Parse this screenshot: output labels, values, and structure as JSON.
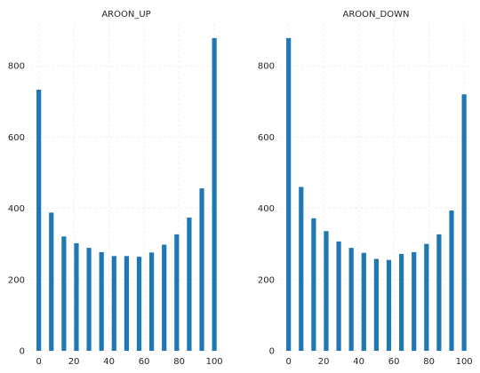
{
  "chart_data": [
    {
      "type": "bar",
      "title": "AROON_UP",
      "xlabel": "",
      "ylabel": "",
      "xlim": [
        -4.9,
        105
      ],
      "ylim": [
        0,
        920
      ],
      "xticks": [
        0,
        20,
        40,
        60,
        80,
        100
      ],
      "yticks": [
        0,
        200,
        400,
        600,
        800
      ],
      "grid": true,
      "x": [
        0,
        7.14,
        14.29,
        21.43,
        28.57,
        35.71,
        42.86,
        50,
        57.14,
        64.29,
        71.43,
        78.57,
        85.71,
        92.86,
        100
      ],
      "values": [
        733,
        388,
        321,
        302,
        289,
        277,
        266,
        266,
        264,
        276,
        298,
        327,
        374,
        456,
        878
      ]
    },
    {
      "type": "bar",
      "title": "AROON_DOWN",
      "xlabel": "",
      "ylabel": "",
      "xlim": [
        -4.9,
        105
      ],
      "ylim": [
        0,
        920
      ],
      "xticks": [
        0,
        20,
        40,
        60,
        80,
        100
      ],
      "yticks": [
        0,
        200,
        400,
        600,
        800
      ],
      "grid": true,
      "x": [
        0,
        7.14,
        14.29,
        21.43,
        28.57,
        35.71,
        42.86,
        50,
        57.14,
        64.29,
        71.43,
        78.57,
        85.71,
        92.86,
        100
      ],
      "values": [
        878,
        460,
        372,
        336,
        307,
        289,
        275,
        258,
        255,
        272,
        277,
        300,
        327,
        394,
        720
      ]
    }
  ]
}
